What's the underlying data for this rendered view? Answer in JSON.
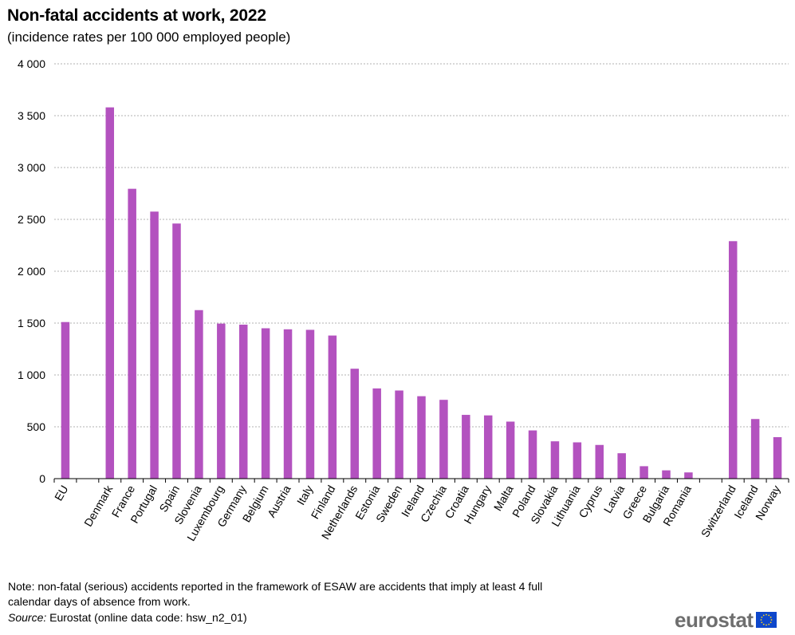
{
  "header": {
    "title": "Non-fatal accidents at work, 2022",
    "subtitle": "(incidence rates per 100 000 employed  people)"
  },
  "footer": {
    "note": "Note: non-fatal (serious) accidents reported in the framework of ESAW are accidents that imply at least 4 full calendar days of absence from work.",
    "source_label": "Source:",
    "source_text": " Eurostat (online data code: hsw_n2_01)",
    "logo_text": "eurostat"
  },
  "colors": {
    "bar": "#b352bf",
    "grid": "#b0b0b0",
    "axis": "#000000",
    "flag_blue": "#0e47cb",
    "flag_star": "#ffd617"
  },
  "chart_data": {
    "type": "bar",
    "title": "Non-fatal accidents at work, 2022",
    "subtitle": "(incidence rates per 100 000 employed  people)",
    "xlabel": "",
    "ylabel": "",
    "ylim": [
      0,
      4000
    ],
    "yticks": [
      0,
      500,
      1000,
      1500,
      2000,
      2500,
      3000,
      3500,
      4000
    ],
    "ytick_labels": [
      "0",
      "500",
      "1 000",
      "1 500",
      "2 000",
      "2 500",
      "3 000",
      "3 500",
      "4 000"
    ],
    "grid": true,
    "legend": "none",
    "categories": [
      "EU",
      "",
      "Denmark",
      "France",
      "Portugal",
      "Spain",
      "Slovenia",
      "Luxembourg",
      "Germany",
      "Belgium",
      "Austria",
      "Italy",
      "Finland",
      "Netherlands",
      "Estonia",
      "Sweden",
      "Ireland",
      "Czechia",
      "Croatia",
      "Hungary",
      "Malta",
      "Poland",
      "Slovakia",
      "Lithuania",
      "Cyprus",
      "Latvia",
      "Greece",
      "Bulgaria",
      "Romania",
      "",
      "Switzerland",
      "Iceland",
      "Norway"
    ],
    "values": [
      1510,
      null,
      3580,
      2795,
      2575,
      2460,
      1625,
      1495,
      1485,
      1450,
      1440,
      1435,
      1380,
      1060,
      870,
      850,
      795,
      760,
      615,
      610,
      550,
      465,
      360,
      350,
      325,
      245,
      120,
      80,
      60,
      null,
      2290,
      575,
      400
    ]
  }
}
